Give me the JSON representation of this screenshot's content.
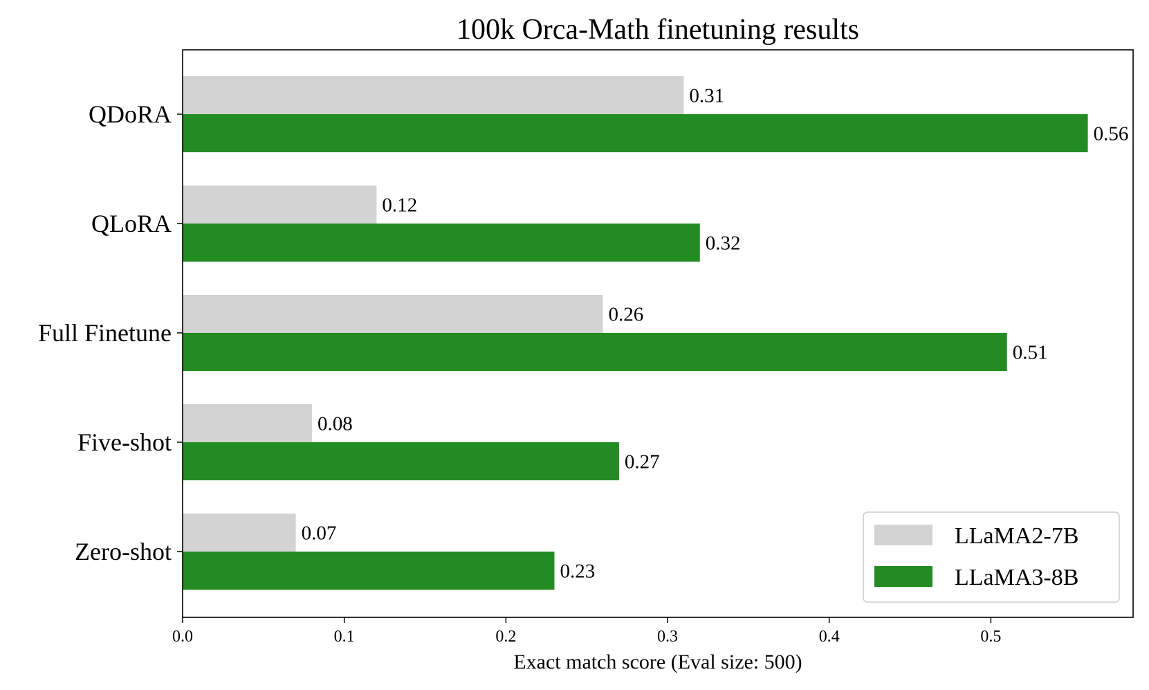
{
  "chart_data": {
    "type": "bar",
    "orientation": "horizontal",
    "title": "100k Orca-Math finetuning results",
    "xlabel": "Exact match score (Eval size: 500)",
    "ylabel": "",
    "categories": [
      "QDoRA",
      "QLoRA",
      "Full Finetune",
      "Five-shot",
      "Zero-shot"
    ],
    "series": [
      {
        "name": "LLaMA2-7B",
        "values": [
          0.31,
          0.12,
          0.26,
          0.08,
          0.07
        ],
        "color": "#d3d3d3"
      },
      {
        "name": "LLaMA3-8B",
        "values": [
          0.56,
          0.32,
          0.51,
          0.27,
          0.23
        ],
        "color": "#228b22"
      }
    ],
    "data_labels": [
      [
        "0.31",
        "0.12",
        "0.26",
        "0.08",
        "0.07"
      ],
      [
        "0.56",
        "0.32",
        "0.51",
        "0.27",
        "0.23"
      ]
    ],
    "xlim": [
      0,
      0.588
    ],
    "xticks": [
      0.0,
      0.1,
      0.2,
      0.3,
      0.4,
      0.5
    ],
    "xtick_labels": [
      "0.0",
      "0.1",
      "0.2",
      "0.3",
      "0.4",
      "0.5"
    ],
    "grid": false,
    "legend_position": "bottom-right"
  }
}
